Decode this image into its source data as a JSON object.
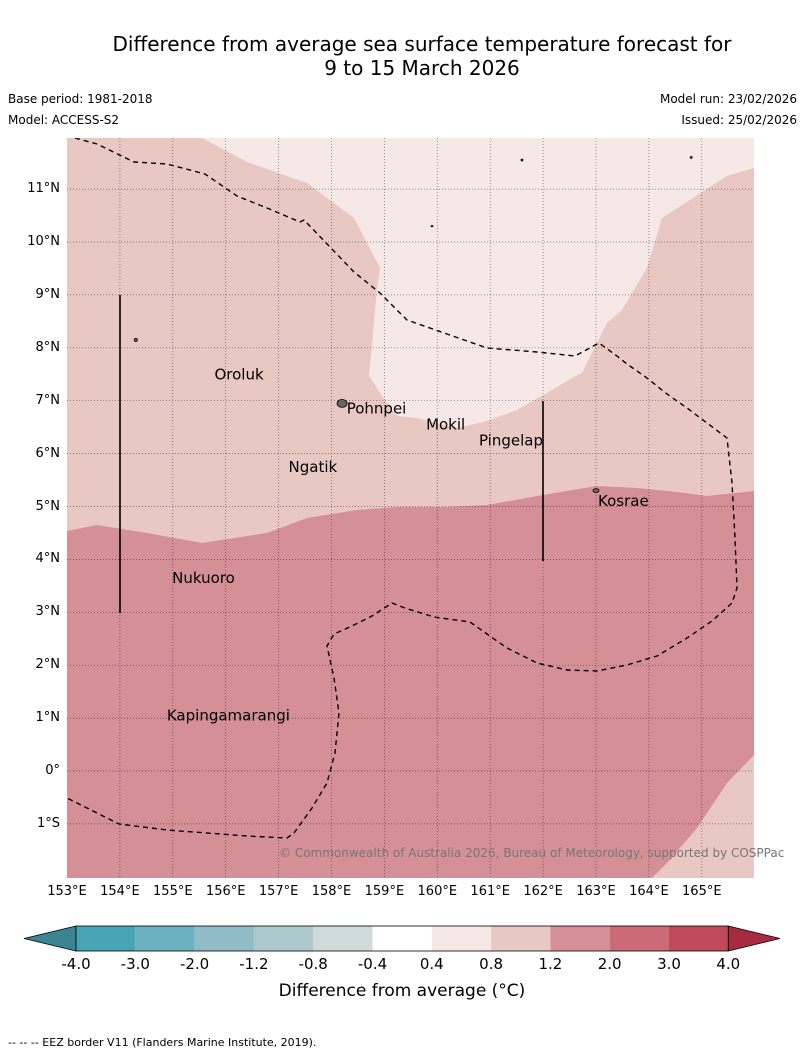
{
  "title_line1": "Difference from average sea surface temperature forecast for",
  "title_line2": "9 to 15 March 2026",
  "base_period": "Base period: 1981-2018",
  "model": "Model: ACCESS-S2",
  "model_run": "Model run: 23/02/2026",
  "issued": "Issued: 25/02/2026",
  "copyright": "© Commonwealth of Australia 2026, Bureau of Meteorology, supported by COSPPac",
  "lat_labels": [
    "11°N",
    "10°N",
    "9°N",
    "8°N",
    "7°N",
    "6°N",
    "5°N",
    "4°N",
    "3°N",
    "2°N",
    "1°N",
    "0°",
    "1°S"
  ],
  "lon_labels": [
    "153°E",
    "154°E",
    "155°E",
    "156°E",
    "157°E",
    "158°E",
    "159°E",
    "160°E",
    "161°E",
    "162°E",
    "163°E",
    "164°E",
    "165°E"
  ],
  "places": [
    {
      "name": "Oroluk",
      "lon": 155.75,
      "lat": 7.5
    },
    {
      "name": "Pohnpei",
      "lon": 158.25,
      "lat": 6.85
    },
    {
      "name": "Mokil",
      "lon": 159.75,
      "lat": 6.55
    },
    {
      "name": "Pingelap",
      "lon": 160.75,
      "lat": 6.25
    },
    {
      "name": "Ngatik",
      "lon": 157.15,
      "lat": 5.75
    },
    {
      "name": "Kosrae",
      "lon": 163.0,
      "lat": 5.1
    },
    {
      "name": "Nukuoro",
      "lon": 154.95,
      "lat": 3.65
    },
    {
      "name": "Kapingamarangi",
      "lon": 154.85,
      "lat": 1.05
    }
  ],
  "colorbar": {
    "ticks": [
      "-4.0",
      "-3.0",
      "-2.0",
      "-1.2",
      "-0.8",
      "-0.4",
      "0.4",
      "0.8",
      "1.2",
      "2.0",
      "3.0",
      "4.0"
    ],
    "colors": [
      "#47a4b4",
      "#6bb1c0",
      "#8fbcc6",
      "#adc9cc",
      "#cfdbdb",
      "#ffffff",
      "#f5e8e7",
      "#e9c7c2",
      "#d58f96",
      "#cb6b77",
      "#c04a5a"
    ],
    "under_color": "#3b8593",
    "over_color": "#a82a40",
    "label": "Difference from average (°C)"
  },
  "region_colors": {
    "light": "#f5e8e7",
    "medium": "#e9c7c2",
    "dark": "#d58f96"
  },
  "footnote": "-- -- -- EEZ border V11 (Flanders Marine Institute, 2019)."
}
